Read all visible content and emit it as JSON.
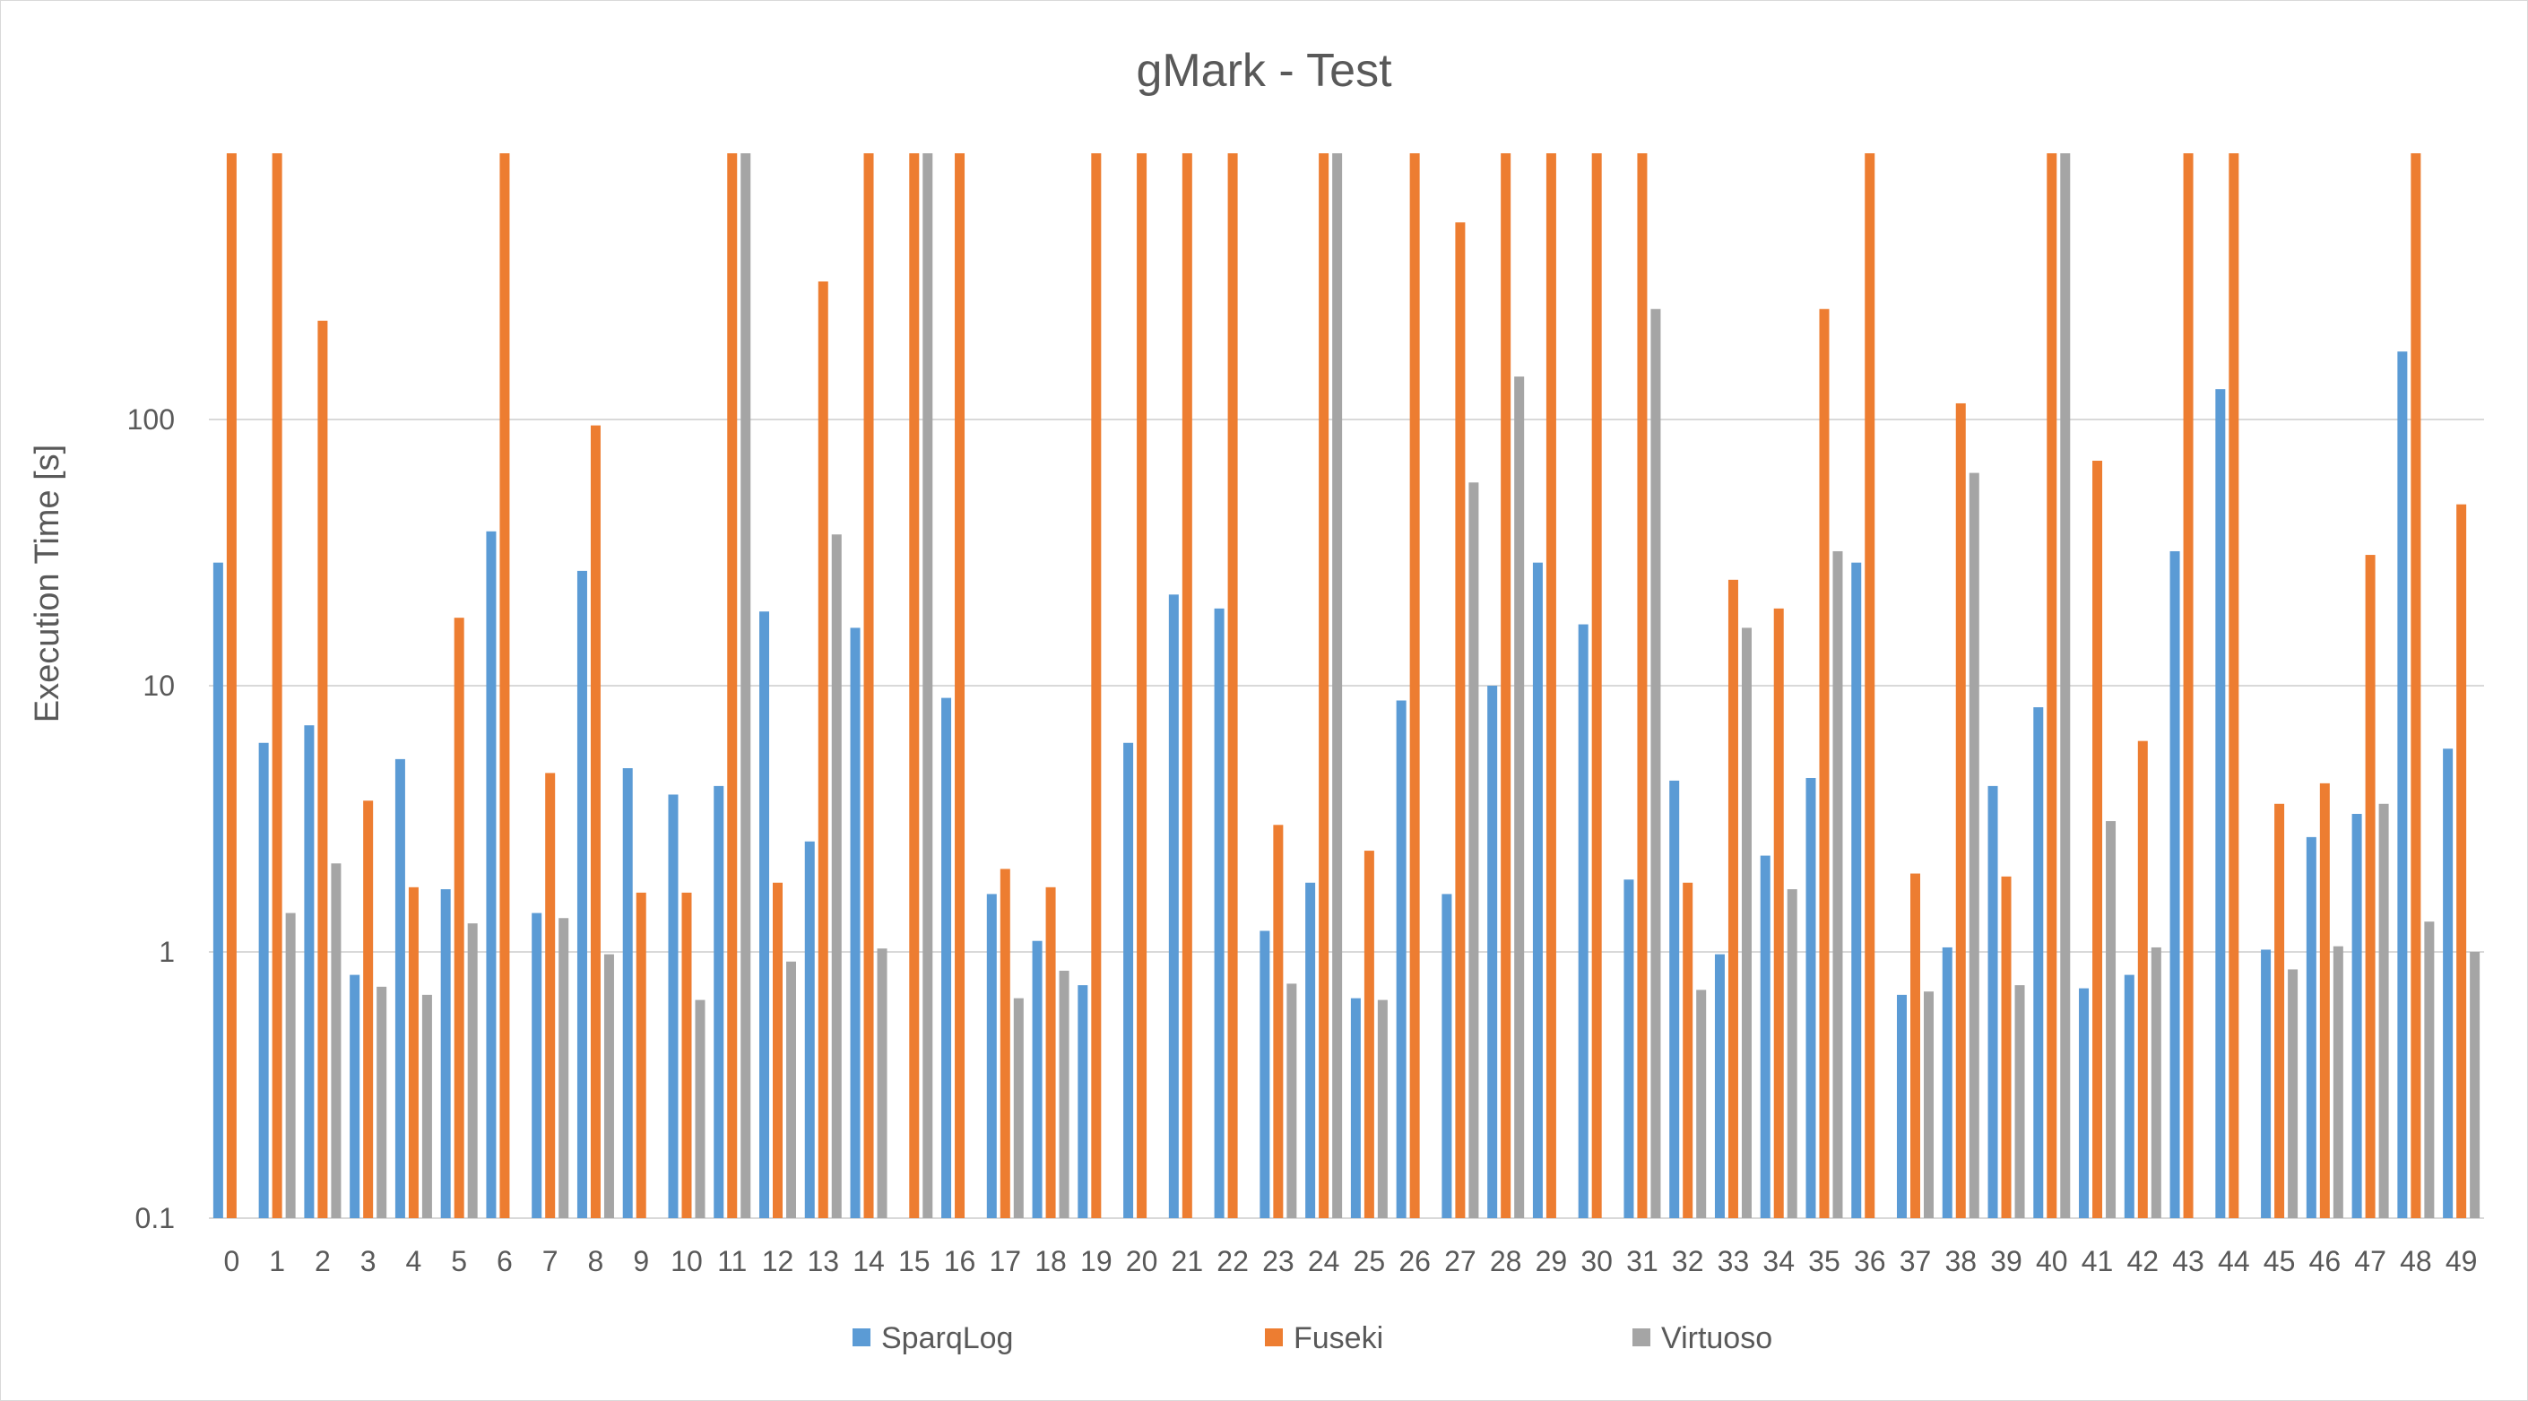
{
  "colors": {
    "SparqLog": "#5b9bd5",
    "Fuseki": "#ed7d31",
    "Virtuoso": "#a5a5a5",
    "text": "#595959",
    "grid": "#d9d9d9"
  },
  "chart_data": {
    "type": "bar",
    "title": "gMark - Test",
    "xlabel": "",
    "ylabel": "Execution Time [s]",
    "yscale": "log",
    "ylim": [
      0.1,
      1000
    ],
    "yticks": [
      0.1,
      1,
      10,
      100
    ],
    "ytick_labels": [
      "0.1",
      "1",
      "10",
      "100"
    ],
    "grid": true,
    "legend_position": "bottom",
    "categories": [
      "0",
      "1",
      "2",
      "3",
      "4",
      "5",
      "6",
      "7",
      "8",
      "9",
      "10",
      "11",
      "12",
      "13",
      "14",
      "15",
      "16",
      "17",
      "18",
      "19",
      "20",
      "21",
      "22",
      "23",
      "24",
      "25",
      "26",
      "27",
      "28",
      "29",
      "30",
      "31",
      "32",
      "33",
      "34",
      "35",
      "36",
      "37",
      "38",
      "39",
      "40",
      "41",
      "42",
      "43",
      "44",
      "45",
      "46",
      "47",
      "48",
      "49"
    ],
    "series": [
      {
        "name": "SparqLog",
        "values": [
          29,
          6.1,
          7.1,
          0.82,
          5.3,
          1.72,
          38,
          1.4,
          27,
          4.9,
          3.9,
          4.2,
          19,
          2.6,
          16.5,
          null,
          9,
          1.65,
          1.1,
          0.75,
          6.1,
          22,
          19.5,
          1.2,
          1.82,
          0.67,
          8.8,
          1.65,
          10,
          29,
          17,
          1.87,
          4.4,
          0.98,
          2.3,
          4.5,
          29,
          0.69,
          1.04,
          4.2,
          8.3,
          0.73,
          0.82,
          32,
          130,
          1.02,
          2.7,
          3.3,
          180,
          5.8
        ]
      },
      {
        "name": "Fuseki",
        "values": [
          1000,
          1000,
          235,
          3.7,
          1.75,
          18,
          1000,
          4.7,
          95,
          1.67,
          1.67,
          1000,
          1.82,
          330,
          1000,
          1000,
          1000,
          2.05,
          1.75,
          1000,
          1000,
          1000,
          1000,
          3.0,
          1000,
          2.4,
          1000,
          550,
          1000,
          1000,
          1000,
          1000,
          1.82,
          25,
          19.5,
          260,
          1000,
          1.97,
          115,
          1.92,
          1000,
          70,
          6.2,
          1000,
          1000,
          3.6,
          4.3,
          31,
          1000,
          48
        ]
      },
      {
        "name": "Virtuoso",
        "values": [
          null,
          1.4,
          2.15,
          0.74,
          0.69,
          1.28,
          null,
          1.34,
          0.98,
          null,
          0.66,
          1000,
          0.92,
          37,
          1.03,
          1000,
          null,
          0.67,
          0.85,
          null,
          null,
          null,
          null,
          0.76,
          1000,
          0.66,
          null,
          58,
          145,
          null,
          null,
          260,
          0.72,
          16.5,
          1.72,
          32,
          null,
          0.71,
          63,
          0.75,
          1000,
          3.1,
          1.04,
          null,
          null,
          0.86,
          1.05,
          3.6,
          1.3,
          1.0
        ]
      }
    ]
  }
}
